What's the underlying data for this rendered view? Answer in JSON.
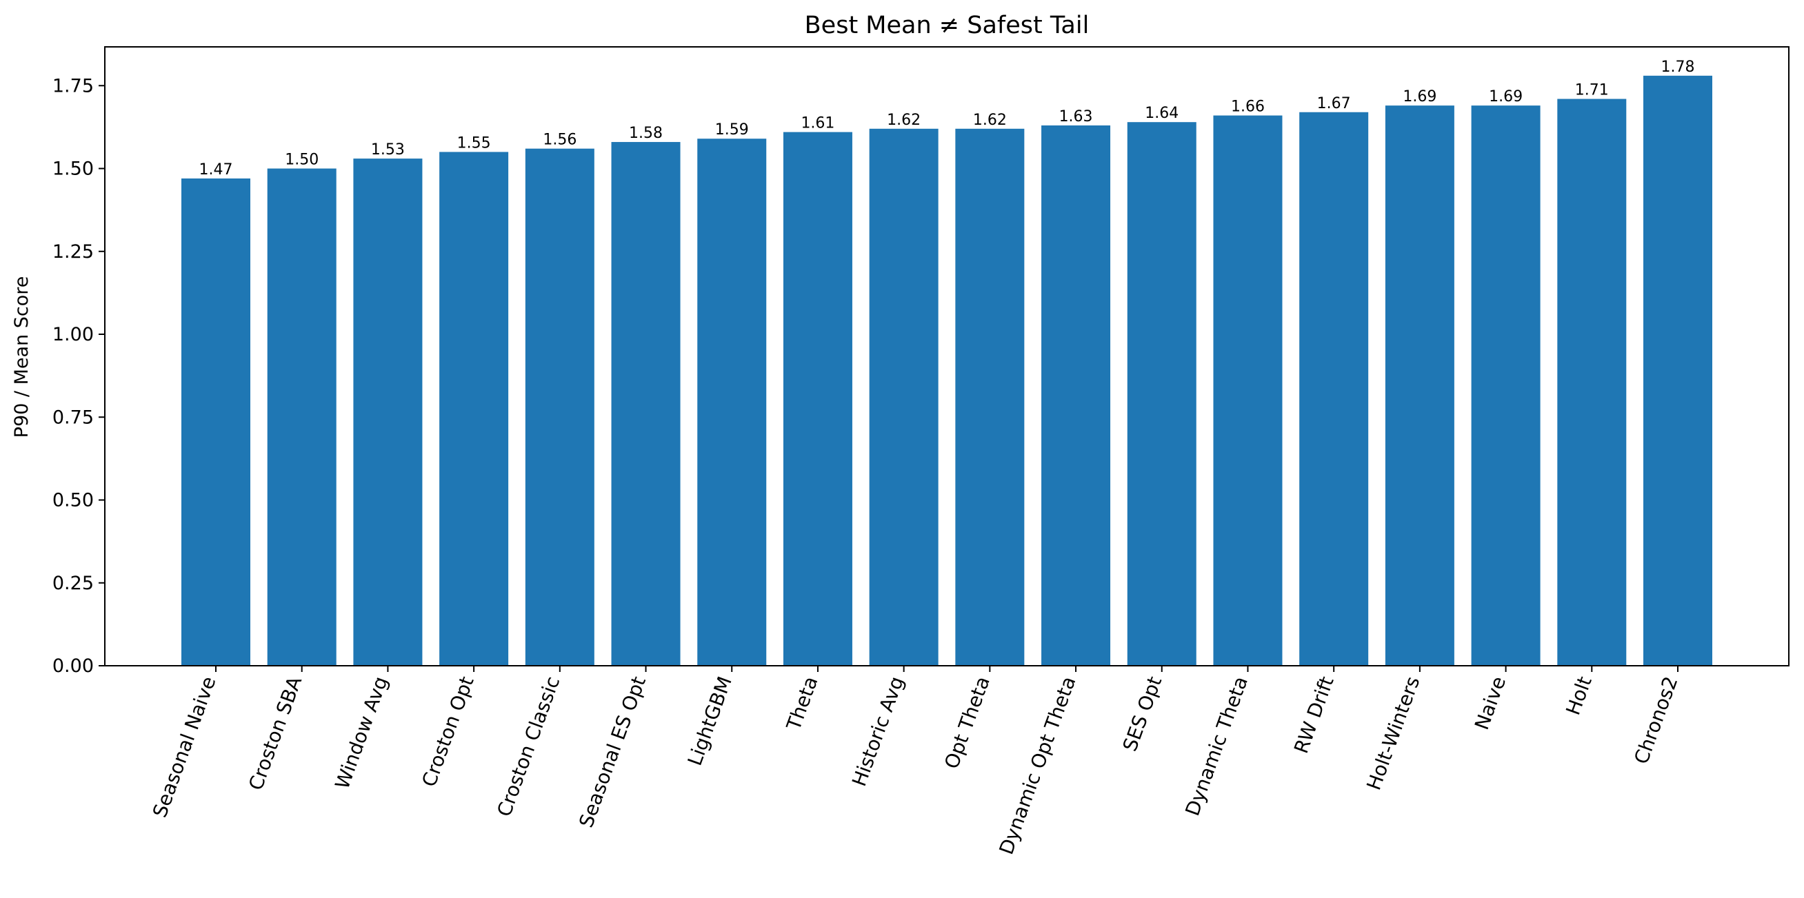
{
  "chart_data": {
    "type": "bar",
    "title": "Best Mean ≠ Safest Tail",
    "xlabel": "",
    "ylabel": "P90 / Mean Score",
    "categories": [
      "Seasonal Naive",
      "Croston SBA",
      "Window Avg",
      "Croston Opt",
      "Croston Classic",
      "Seasonal ES Opt",
      "LightGBM",
      "Theta",
      "Historic Avg",
      "Opt Theta",
      "Dynamic Opt Theta",
      "SES Opt",
      "Dynamic Theta",
      "RW Drift",
      "Holt-Winters",
      "Naive",
      "Holt",
      "Chronos2"
    ],
    "values": [
      1.47,
      1.5,
      1.53,
      1.55,
      1.56,
      1.58,
      1.59,
      1.61,
      1.62,
      1.62,
      1.63,
      1.64,
      1.66,
      1.67,
      1.69,
      1.69,
      1.71,
      1.78
    ],
    "data_labels": [
      "1.47",
      "1.50",
      "1.53",
      "1.55",
      "1.56",
      "1.58",
      "1.59",
      "1.61",
      "1.62",
      "1.62",
      "1.63",
      "1.64",
      "1.66",
      "1.67",
      "1.69",
      "1.69",
      "1.71",
      "1.78"
    ],
    "yticks": [
      "0.00",
      "0.25",
      "0.50",
      "0.75",
      "1.00",
      "1.25",
      "1.50",
      "1.75"
    ],
    "ylim": [
      0,
      1.867
    ],
    "grid": false,
    "legend": "none",
    "bar_color": "#1f77b4"
  }
}
